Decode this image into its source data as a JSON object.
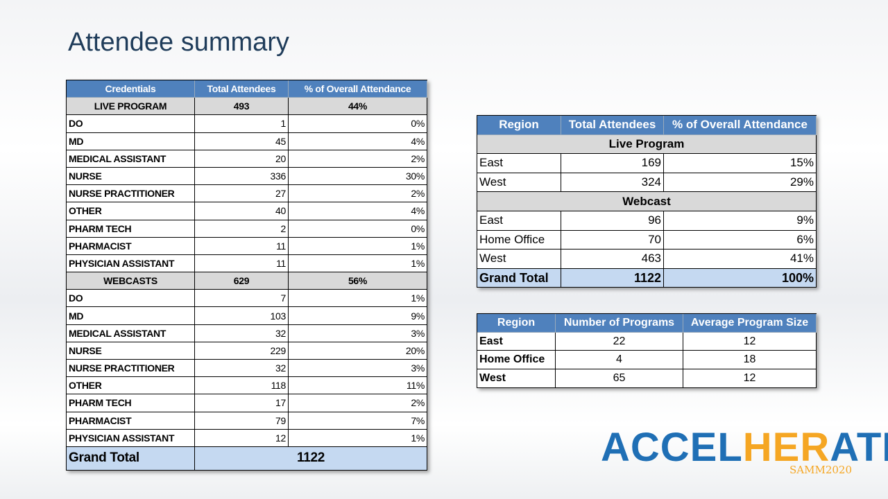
{
  "title": "Attendee summary",
  "credentials_table": {
    "header": [
      "Credentials",
      "Total Attendees",
      "% of Overall Attendance"
    ],
    "sections": [
      {
        "label": "LIVE PROGRAM",
        "total": 493,
        "percent": "44%",
        "rows": [
          [
            "DO",
            1,
            "0%"
          ],
          [
            "MD",
            45,
            "4%"
          ],
          [
            "MEDICAL ASSISTANT",
            20,
            "2%"
          ],
          [
            "NURSE",
            336,
            "30%"
          ],
          [
            "NURSE PRACTITIONER",
            27,
            "2%"
          ],
          [
            "OTHER",
            40,
            "4%"
          ],
          [
            "PHARM TECH",
            2,
            "0%"
          ],
          [
            "PHARMACIST",
            11,
            "1%"
          ],
          [
            "PHYSICIAN ASSISTANT",
            11,
            "1%"
          ]
        ]
      },
      {
        "label": "WEBCASTS",
        "total": 629,
        "percent": "56%",
        "rows": [
          [
            "DO",
            7,
            "1%"
          ],
          [
            "MD",
            103,
            "9%"
          ],
          [
            "MEDICAL ASSISTANT",
            32,
            "3%"
          ],
          [
            "NURSE",
            229,
            "20%"
          ],
          [
            "NURSE PRACTITIONER",
            32,
            "3%"
          ],
          [
            "OTHER",
            118,
            "11%"
          ],
          [
            "PHARM TECH",
            17,
            "2%"
          ],
          [
            "PHARMACIST",
            79,
            "7%"
          ],
          [
            "PHYSICIAN ASSISTANT",
            12,
            "1%"
          ]
        ]
      }
    ],
    "grand_total": {
      "label": "Grand Total",
      "total": 1122
    }
  },
  "region_table": {
    "header": [
      "Region",
      "Total Attendees",
      "% of Overall Attendance"
    ],
    "sections": [
      {
        "label": "Live Program",
        "rows": [
          [
            "East",
            169,
            "15%"
          ],
          [
            "West",
            324,
            "29%"
          ]
        ]
      },
      {
        "label": "Webcast",
        "rows": [
          [
            "East",
            96,
            "9%"
          ],
          [
            "Home Office",
            70,
            "6%"
          ],
          [
            "West",
            463,
            "41%"
          ]
        ]
      }
    ],
    "grand_total": [
      "Grand Total",
      1122,
      "100%"
    ]
  },
  "programs_table": {
    "header": [
      "Region",
      "Number of Programs",
      "Average Program Size"
    ],
    "rows": [
      [
        "East",
        22,
        12
      ],
      [
        "Home Office",
        4,
        18
      ],
      [
        "West",
        65,
        12
      ]
    ]
  },
  "logo": {
    "parts": [
      "ACCEL",
      "HER",
      "ATE"
    ],
    "subtitle": "SAMM2020"
  }
}
